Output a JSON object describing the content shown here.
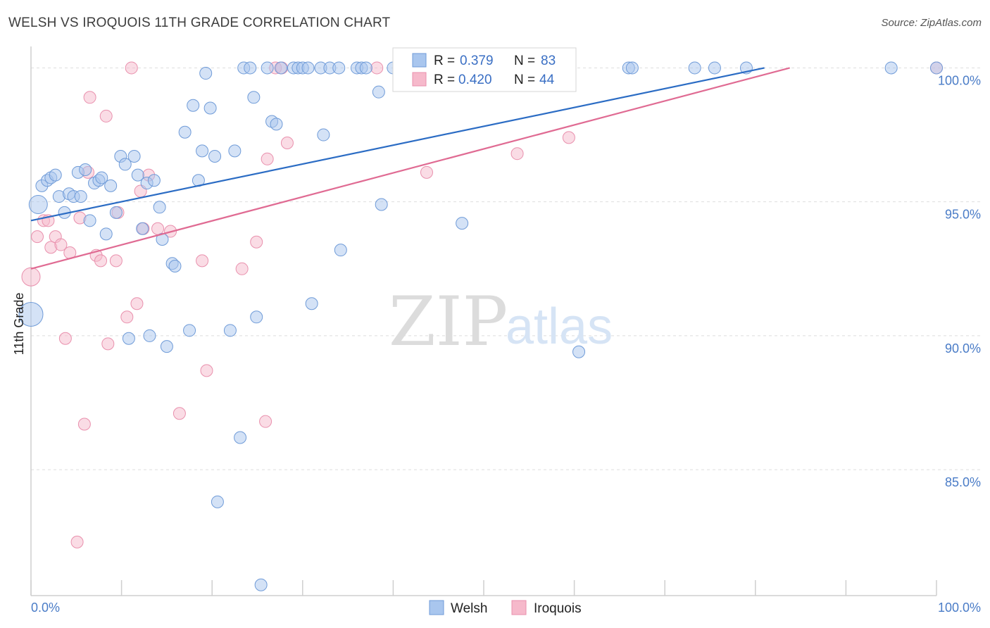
{
  "header": {
    "title": "WELSH VS IROQUOIS 11TH GRADE CORRELATION CHART",
    "source": "Source: ZipAtlas.com"
  },
  "watermark": {
    "zip": "ZIP",
    "atlas": "atlas"
  },
  "legend": {
    "welsh": {
      "r_label": "R =",
      "r_value": "0.379",
      "n_label": "N =",
      "n_value": "83"
    },
    "iroquois": {
      "r_label": "R =",
      "r_value": "0.420",
      "n_label": "N =",
      "n_value": "44"
    }
  },
  "colors": {
    "welsh_fill": "#a9c6ee",
    "welsh_stroke": "#6f9bd8",
    "welsh_line": "#2b6cc4",
    "iroquois_fill": "#f6b9cb",
    "iroquois_stroke": "#e990ad",
    "iroquois_line": "#e06b93",
    "grid": "#dddddd",
    "tick_label": "#4a7cc7"
  },
  "chart_data": {
    "type": "scatter",
    "title": "WELSH VS IROQUOIS 11TH GRADE CORRELATION CHART",
    "xlabel": "",
    "ylabel": "11th Grade",
    "xlim": [
      0,
      100
    ],
    "ylim": [
      80.3,
      100.8
    ],
    "x_tick_labels": [
      {
        "value": 0,
        "label": "0.0%"
      },
      {
        "value": 100,
        "label": "100.0%"
      }
    ],
    "y_ticks": [
      {
        "value": 100,
        "label": "100.0%"
      },
      {
        "value": 95,
        "label": "95.0%"
      },
      {
        "value": 90,
        "label": "90.0%"
      },
      {
        "value": 85,
        "label": "85.0%"
      }
    ],
    "grid": "horizontal dashed",
    "legend_position": "top-center",
    "series": [
      {
        "name": "Welsh",
        "trend": {
          "x": [
            0,
            81.0
          ],
          "y": [
            94.3,
            100.0
          ]
        },
        "points": [
          {
            "x": 0.0,
            "y": 90.8,
            "s": 3
          },
          {
            "x": 0.8,
            "y": 94.9,
            "s": 2
          },
          {
            "x": 1.2,
            "y": 95.6,
            "s": 1
          },
          {
            "x": 1.8,
            "y": 95.8,
            "s": 1
          },
          {
            "x": 2.2,
            "y": 95.9,
            "s": 1
          },
          {
            "x": 2.7,
            "y": 96.0,
            "s": 1
          },
          {
            "x": 3.1,
            "y": 95.2,
            "s": 1
          },
          {
            "x": 3.7,
            "y": 94.6,
            "s": 1
          },
          {
            "x": 4.2,
            "y": 95.3,
            "s": 1
          },
          {
            "x": 4.7,
            "y": 95.2,
            "s": 1
          },
          {
            "x": 5.2,
            "y": 96.1,
            "s": 1
          },
          {
            "x": 5.5,
            "y": 95.2,
            "s": 1
          },
          {
            "x": 6.0,
            "y": 96.2,
            "s": 1
          },
          {
            "x": 6.5,
            "y": 94.3,
            "s": 1
          },
          {
            "x": 7.0,
            "y": 95.7,
            "s": 1
          },
          {
            "x": 7.5,
            "y": 95.8,
            "s": 1
          },
          {
            "x": 7.8,
            "y": 95.9,
            "s": 1
          },
          {
            "x": 8.3,
            "y": 93.8,
            "s": 1
          },
          {
            "x": 8.8,
            "y": 95.6,
            "s": 1
          },
          {
            "x": 9.4,
            "y": 94.6,
            "s": 1
          },
          {
            "x": 9.9,
            "y": 96.7,
            "s": 1
          },
          {
            "x": 10.4,
            "y": 96.4,
            "s": 1
          },
          {
            "x": 10.8,
            "y": 89.9,
            "s": 1
          },
          {
            "x": 11.4,
            "y": 96.7,
            "s": 1
          },
          {
            "x": 11.8,
            "y": 96.0,
            "s": 1
          },
          {
            "x": 12.3,
            "y": 94.0,
            "s": 1
          },
          {
            "x": 12.8,
            "y": 95.7,
            "s": 1
          },
          {
            "x": 13.1,
            "y": 90.0,
            "s": 1
          },
          {
            "x": 13.6,
            "y": 95.8,
            "s": 1
          },
          {
            "x": 14.2,
            "y": 94.8,
            "s": 1
          },
          {
            "x": 14.5,
            "y": 93.6,
            "s": 1
          },
          {
            "x": 15.0,
            "y": 89.6,
            "s": 1
          },
          {
            "x": 15.6,
            "y": 92.7,
            "s": 1
          },
          {
            "x": 15.9,
            "y": 92.6,
            "s": 1
          },
          {
            "x": 17.0,
            "y": 97.6,
            "s": 1
          },
          {
            "x": 17.5,
            "y": 90.2,
            "s": 1
          },
          {
            "x": 17.9,
            "y": 98.6,
            "s": 1
          },
          {
            "x": 18.5,
            "y": 95.8,
            "s": 1
          },
          {
            "x": 18.9,
            "y": 96.9,
            "s": 1
          },
          {
            "x": 19.3,
            "y": 99.8,
            "s": 1
          },
          {
            "x": 19.8,
            "y": 98.5,
            "s": 1
          },
          {
            "x": 20.3,
            "y": 96.7,
            "s": 1
          },
          {
            "x": 20.6,
            "y": 83.8,
            "s": 1
          },
          {
            "x": 22.0,
            "y": 90.2,
            "s": 1
          },
          {
            "x": 22.5,
            "y": 96.9,
            "s": 1
          },
          {
            "x": 23.1,
            "y": 86.2,
            "s": 1
          },
          {
            "x": 23.5,
            "y": 100.0,
            "s": 1
          },
          {
            "x": 24.2,
            "y": 100.0,
            "s": 1
          },
          {
            "x": 24.6,
            "y": 98.9,
            "s": 1
          },
          {
            "x": 24.9,
            "y": 90.7,
            "s": 1
          },
          {
            "x": 25.4,
            "y": 80.7,
            "s": 1
          },
          {
            "x": 26.1,
            "y": 100.0,
            "s": 1
          },
          {
            "x": 26.6,
            "y": 98.0,
            "s": 1
          },
          {
            "x": 27.1,
            "y": 97.9,
            "s": 1
          },
          {
            "x": 27.6,
            "y": 100.0,
            "s": 1
          },
          {
            "x": 29.0,
            "y": 100.0,
            "s": 1
          },
          {
            "x": 29.5,
            "y": 100.0,
            "s": 1
          },
          {
            "x": 30.0,
            "y": 100.0,
            "s": 1
          },
          {
            "x": 30.6,
            "y": 100.0,
            "s": 1
          },
          {
            "x": 31.0,
            "y": 91.2,
            "s": 1
          },
          {
            "x": 32.0,
            "y": 100.0,
            "s": 1
          },
          {
            "x": 32.3,
            "y": 97.5,
            "s": 1
          },
          {
            "x": 33.0,
            "y": 100.0,
            "s": 1
          },
          {
            "x": 34.0,
            "y": 100.0,
            "s": 1
          },
          {
            "x": 34.2,
            "y": 93.2,
            "s": 1
          },
          {
            "x": 36.0,
            "y": 100.0,
            "s": 1
          },
          {
            "x": 36.5,
            "y": 100.0,
            "s": 1
          },
          {
            "x": 37.0,
            "y": 100.0,
            "s": 1
          },
          {
            "x": 38.4,
            "y": 99.1,
            "s": 1
          },
          {
            "x": 38.7,
            "y": 94.9,
            "s": 1
          },
          {
            "x": 40.0,
            "y": 100.0,
            "s": 1
          },
          {
            "x": 41.0,
            "y": 100.0,
            "s": 1
          },
          {
            "x": 45.0,
            "y": 100.0,
            "s": 1
          },
          {
            "x": 47.6,
            "y": 94.2,
            "s": 1
          },
          {
            "x": 54.2,
            "y": 100.0,
            "s": 1
          },
          {
            "x": 60.5,
            "y": 89.4,
            "s": 1
          },
          {
            "x": 66.0,
            "y": 100.0,
            "s": 1
          },
          {
            "x": 66.4,
            "y": 100.0,
            "s": 1
          },
          {
            "x": 73.3,
            "y": 100.0,
            "s": 1
          },
          {
            "x": 75.5,
            "y": 100.0,
            "s": 1
          },
          {
            "x": 79.0,
            "y": 100.0,
            "s": 1
          },
          {
            "x": 95.0,
            "y": 100.0,
            "s": 1
          },
          {
            "x": 100.0,
            "y": 100.0,
            "s": 1
          }
        ]
      },
      {
        "name": "Iroquois",
        "trend": {
          "x": [
            0,
            83.8
          ],
          "y": [
            92.5,
            100.0
          ]
        },
        "points": [
          {
            "x": 0.0,
            "y": 92.2,
            "s": 2
          },
          {
            "x": 0.7,
            "y": 93.7,
            "s": 1
          },
          {
            "x": 1.4,
            "y": 94.3,
            "s": 1
          },
          {
            "x": 1.9,
            "y": 94.3,
            "s": 1
          },
          {
            "x": 2.2,
            "y": 93.3,
            "s": 1
          },
          {
            "x": 2.7,
            "y": 93.7,
            "s": 1
          },
          {
            "x": 3.3,
            "y": 93.4,
            "s": 1
          },
          {
            "x": 3.8,
            "y": 89.9,
            "s": 1
          },
          {
            "x": 4.3,
            "y": 93.1,
            "s": 1
          },
          {
            "x": 5.1,
            "y": 82.3,
            "s": 1
          },
          {
            "x": 5.4,
            "y": 94.4,
            "s": 1
          },
          {
            "x": 5.9,
            "y": 86.7,
            "s": 1
          },
          {
            "x": 6.3,
            "y": 96.1,
            "s": 1
          },
          {
            "x": 6.5,
            "y": 98.9,
            "s": 1
          },
          {
            "x": 7.2,
            "y": 93.0,
            "s": 1
          },
          {
            "x": 7.7,
            "y": 92.8,
            "s": 1
          },
          {
            "x": 8.3,
            "y": 98.2,
            "s": 1
          },
          {
            "x": 8.5,
            "y": 89.7,
            "s": 1
          },
          {
            "x": 9.4,
            "y": 92.8,
            "s": 1
          },
          {
            "x": 9.6,
            "y": 94.6,
            "s": 1
          },
          {
            "x": 10.6,
            "y": 90.7,
            "s": 1
          },
          {
            "x": 11.1,
            "y": 100.0,
            "s": 1
          },
          {
            "x": 11.7,
            "y": 91.2,
            "s": 1
          },
          {
            "x": 12.1,
            "y": 95.4,
            "s": 1
          },
          {
            "x": 12.4,
            "y": 94.0,
            "s": 1
          },
          {
            "x": 13.0,
            "y": 96.0,
            "s": 1
          },
          {
            "x": 14.0,
            "y": 94.0,
            "s": 1
          },
          {
            "x": 15.4,
            "y": 93.9,
            "s": 1
          },
          {
            "x": 16.4,
            "y": 87.1,
            "s": 1
          },
          {
            "x": 18.9,
            "y": 92.8,
            "s": 1
          },
          {
            "x": 19.4,
            "y": 88.7,
            "s": 1
          },
          {
            "x": 23.3,
            "y": 92.5,
            "s": 1
          },
          {
            "x": 24.9,
            "y": 93.5,
            "s": 1
          },
          {
            "x": 25.9,
            "y": 86.8,
            "s": 1
          },
          {
            "x": 26.1,
            "y": 96.6,
            "s": 1
          },
          {
            "x": 27.0,
            "y": 100.0,
            "s": 1
          },
          {
            "x": 27.7,
            "y": 100.0,
            "s": 1
          },
          {
            "x": 28.3,
            "y": 97.2,
            "s": 1
          },
          {
            "x": 38.2,
            "y": 100.0,
            "s": 1
          },
          {
            "x": 43.7,
            "y": 96.1,
            "s": 1
          },
          {
            "x": 53.7,
            "y": 96.8,
            "s": 1
          },
          {
            "x": 59.4,
            "y": 97.4,
            "s": 1
          },
          {
            "x": 100.0,
            "y": 100.0,
            "s": 1
          }
        ]
      }
    ]
  }
}
